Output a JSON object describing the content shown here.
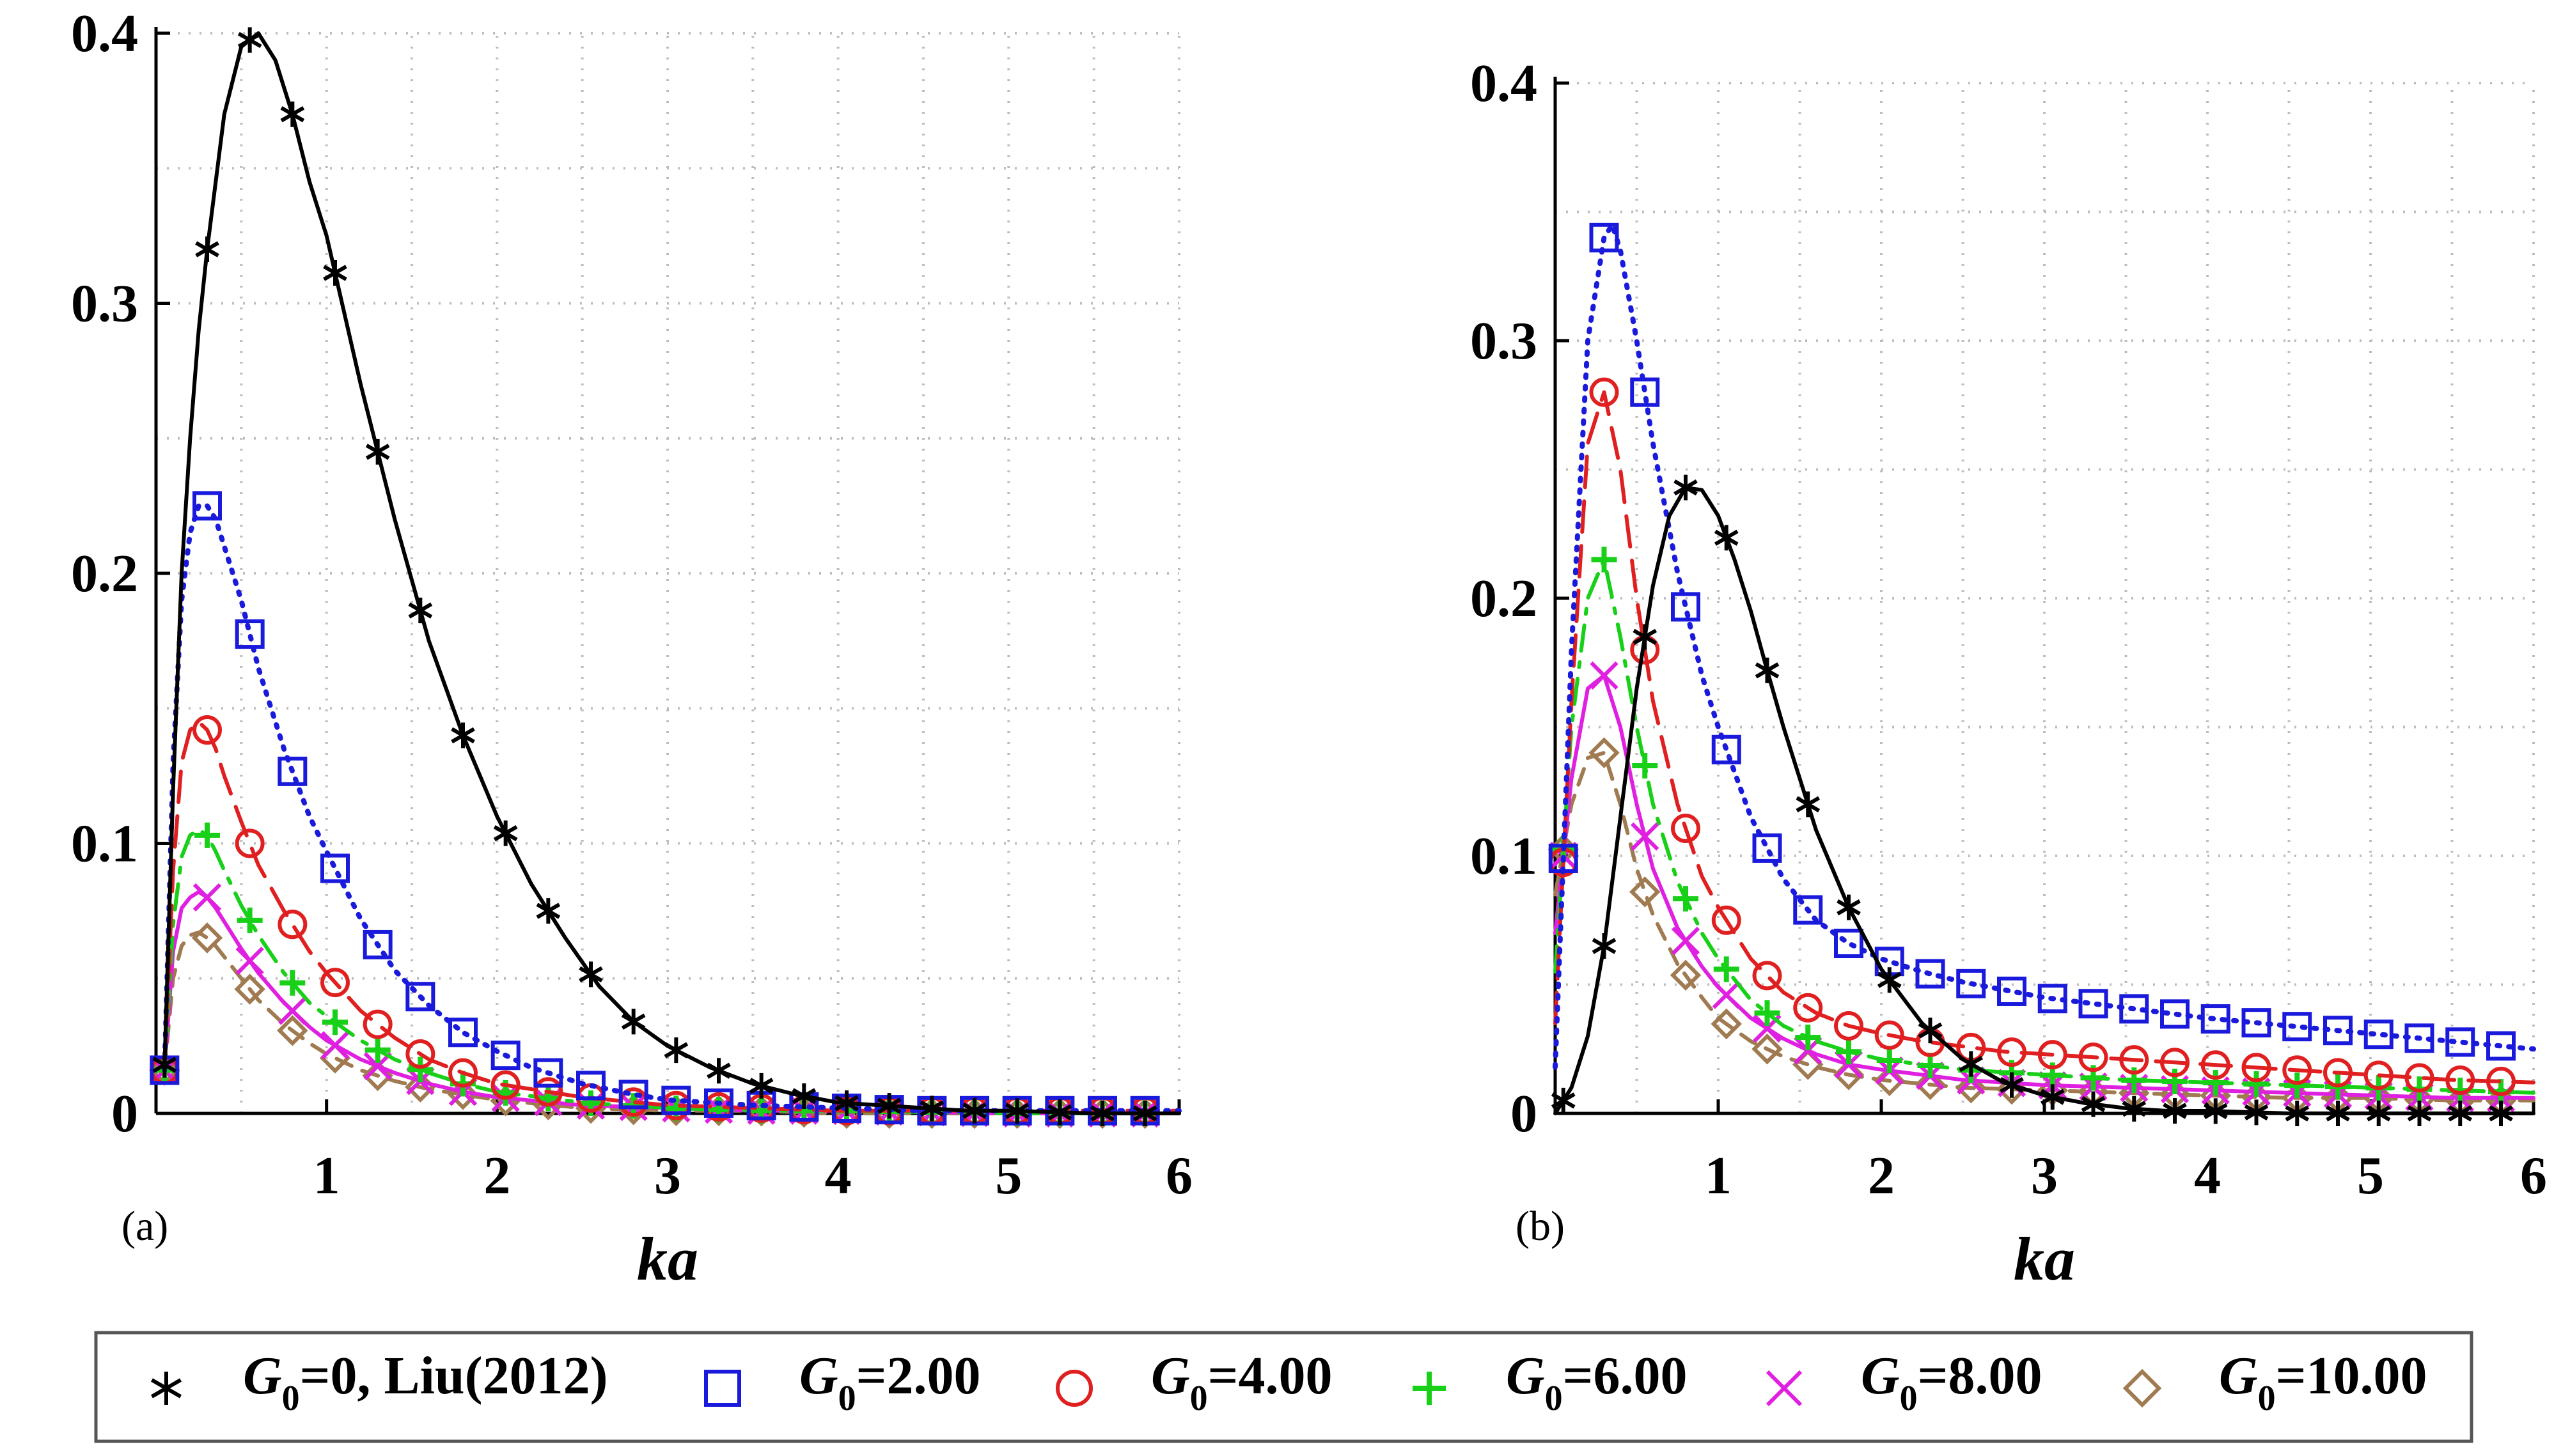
{
  "chart_data": [
    {
      "type": "line",
      "panel_label": "(a)",
      "xlabel": "ka",
      "ylabel": "",
      "xlim": [
        0,
        6
      ],
      "ylim": [
        0,
        0.4
      ],
      "xticks": [
        1,
        2,
        3,
        4,
        5,
        6
      ],
      "yticks": [
        0,
        0.1,
        0.2,
        0.3,
        0.4
      ],
      "xtick_labels": [
        "1",
        "2",
        "3",
        "4",
        "5",
        "6"
      ],
      "ytick_labels": [
        "0",
        "0.1",
        "0.2",
        "0.3",
        "0.4"
      ],
      "grid": true,
      "series": [
        {
          "name": "G0=0, Liu(2012)",
          "color": "#000000",
          "style": "solid",
          "marker": "star",
          "x": [
            0.05,
            0.1,
            0.15,
            0.2,
            0.25,
            0.3,
            0.4,
            0.5,
            0.6,
            0.7,
            0.8,
            0.9,
            1.0,
            1.2,
            1.4,
            1.6,
            1.8,
            2.0,
            2.2,
            2.4,
            2.6,
            2.8,
            3.0,
            3.25,
            3.5,
            3.75,
            4.0,
            4.25,
            4.5,
            4.75,
            5.0,
            5.5,
            6.0
          ],
          "values": [
            0.018,
            0.12,
            0.2,
            0.25,
            0.29,
            0.32,
            0.37,
            0.395,
            0.4,
            0.39,
            0.37,
            0.345,
            0.325,
            0.27,
            0.22,
            0.175,
            0.14,
            0.11,
            0.085,
            0.065,
            0.047,
            0.034,
            0.025,
            0.017,
            0.011,
            0.007,
            0.004,
            0.003,
            0.002,
            0.001,
            0.001,
            0.0,
            0.0
          ]
        },
        {
          "name": "G0=2.00",
          "color": "#1a1adc",
          "style": "dotted",
          "marker": "square",
          "x": [
            0.05,
            0.1,
            0.15,
            0.2,
            0.25,
            0.3,
            0.35,
            0.4,
            0.5,
            0.6,
            0.75,
            0.9,
            1.0,
            1.2,
            1.4,
            1.6,
            1.8,
            2.0,
            2.2,
            2.5,
            2.8,
            3.0,
            3.5,
            4.0,
            4.5,
            5.0,
            5.5,
            6.0
          ],
          "values": [
            0.016,
            0.13,
            0.19,
            0.215,
            0.225,
            0.225,
            0.22,
            0.21,
            0.19,
            0.165,
            0.135,
            0.11,
            0.097,
            0.072,
            0.053,
            0.04,
            0.03,
            0.023,
            0.017,
            0.011,
            0.007,
            0.005,
            0.003,
            0.002,
            0.001,
            0.001,
            0.001,
            0.001
          ]
        },
        {
          "name": "G0=4.00",
          "color": "#e02020",
          "style": "dashed",
          "marker": "circle",
          "x": [
            0.05,
            0.1,
            0.15,
            0.2,
            0.25,
            0.3,
            0.35,
            0.4,
            0.5,
            0.6,
            0.75,
            0.9,
            1.0,
            1.2,
            1.4,
            1.6,
            1.8,
            2.0,
            2.5,
            3.0,
            3.5,
            4.0,
            5.0,
            6.0
          ],
          "values": [
            0.016,
            0.09,
            0.13,
            0.142,
            0.145,
            0.142,
            0.135,
            0.125,
            0.108,
            0.092,
            0.075,
            0.06,
            0.052,
            0.038,
            0.028,
            0.02,
            0.015,
            0.011,
            0.006,
            0.003,
            0.002,
            0.001,
            0.001,
            0.001
          ]
        },
        {
          "name": "G0=6.00",
          "color": "#18d018",
          "style": "dashdot",
          "marker": "plus",
          "x": [
            0.05,
            0.1,
            0.15,
            0.2,
            0.25,
            0.3,
            0.35,
            0.4,
            0.5,
            0.6,
            0.75,
            0.9,
            1.0,
            1.2,
            1.4,
            1.6,
            1.8,
            2.0,
            2.5,
            3.0,
            3.5,
            4.0,
            5.0,
            6.0
          ],
          "values": [
            0.016,
            0.07,
            0.095,
            0.103,
            0.105,
            0.103,
            0.097,
            0.09,
            0.077,
            0.066,
            0.052,
            0.041,
            0.036,
            0.027,
            0.02,
            0.015,
            0.011,
            0.008,
            0.004,
            0.002,
            0.001,
            0.001,
            0.0,
            0.0
          ]
        },
        {
          "name": "G0=8.00",
          "color": "#e020e0",
          "style": "solid",
          "marker": "x",
          "x": [
            0.05,
            0.1,
            0.15,
            0.2,
            0.25,
            0.3,
            0.35,
            0.4,
            0.5,
            0.6,
            0.75,
            0.9,
            1.0,
            1.2,
            1.4,
            1.6,
            1.8,
            2.0,
            2.5,
            3.0,
            3.5,
            4.0,
            5.0,
            6.0
          ],
          "values": [
            0.016,
            0.06,
            0.076,
            0.08,
            0.082,
            0.08,
            0.076,
            0.071,
            0.061,
            0.052,
            0.041,
            0.032,
            0.027,
            0.02,
            0.015,
            0.011,
            0.008,
            0.006,
            0.003,
            0.002,
            0.001,
            0.001,
            0.0,
            0.0
          ]
        },
        {
          "name": "G0=10.00",
          "color": "#a07a50",
          "style": "dashed-short",
          "marker": "diamond",
          "x": [
            0.05,
            0.1,
            0.15,
            0.2,
            0.25,
            0.3,
            0.35,
            0.4,
            0.5,
            0.6,
            0.75,
            0.9,
            1.0,
            1.2,
            1.4,
            1.6,
            1.8,
            2.0,
            2.5,
            3.0,
            3.5,
            4.0,
            5.0,
            6.0
          ],
          "values": [
            0.016,
            0.05,
            0.062,
            0.066,
            0.067,
            0.065,
            0.062,
            0.058,
            0.05,
            0.042,
            0.033,
            0.026,
            0.022,
            0.016,
            0.012,
            0.009,
            0.007,
            0.005,
            0.002,
            0.001,
            0.001,
            0.0,
            0.0,
            0.0
          ]
        }
      ]
    },
    {
      "type": "line",
      "panel_label": "(b)",
      "xlabel": "ka",
      "ylabel": "",
      "xlim": [
        0,
        6
      ],
      "ylim": [
        0,
        0.4
      ],
      "xticks": [
        1,
        2,
        3,
        4,
        5,
        6
      ],
      "yticks": [
        0,
        0.1,
        0.2,
        0.3,
        0.4
      ],
      "xtick_labels": [
        "1",
        "2",
        "3",
        "4",
        "5",
        "6"
      ],
      "ytick_labels": [
        "0",
        "0.1",
        "0.2",
        "0.3",
        "0.4"
      ],
      "grid": true,
      "series": [
        {
          "name": "G0=0, Liu(2012)",
          "color": "#000000",
          "style": "solid",
          "marker": "star",
          "x": [
            0.0,
            0.1,
            0.2,
            0.3,
            0.4,
            0.5,
            0.6,
            0.7,
            0.8,
            0.9,
            1.0,
            1.1,
            1.2,
            1.3,
            1.4,
            1.5,
            1.6,
            1.8,
            2.0,
            2.25,
            2.5,
            2.75,
            3.0,
            3.25,
            3.5,
            3.75,
            4.0,
            4.5,
            5.0,
            5.5,
            6.0
          ],
          "values": [
            0.0,
            0.01,
            0.03,
            0.065,
            0.115,
            0.165,
            0.205,
            0.232,
            0.243,
            0.242,
            0.232,
            0.215,
            0.195,
            0.172,
            0.15,
            0.13,
            0.11,
            0.08,
            0.056,
            0.035,
            0.021,
            0.012,
            0.007,
            0.004,
            0.002,
            0.001,
            0.001,
            0.0,
            0.0,
            0.0,
            0.0
          ]
        },
        {
          "name": "G0=2.00",
          "color": "#1a1adc",
          "style": "dotted",
          "marker": "square",
          "x": [
            0.0,
            0.1,
            0.2,
            0.3,
            0.35,
            0.4,
            0.5,
            0.6,
            0.75,
            0.9,
            1.0,
            1.2,
            1.4,
            1.6,
            1.8,
            2.0,
            2.25,
            2.5,
            2.75,
            3.0,
            3.5,
            4.0,
            4.5,
            5.0,
            5.5,
            6.0
          ],
          "values": [
            0.018,
            0.18,
            0.3,
            0.34,
            0.345,
            0.335,
            0.3,
            0.26,
            0.21,
            0.17,
            0.15,
            0.115,
            0.091,
            0.075,
            0.066,
            0.06,
            0.055,
            0.051,
            0.048,
            0.045,
            0.041,
            0.037,
            0.034,
            0.031,
            0.028,
            0.025
          ]
        },
        {
          "name": "G0=4.00",
          "color": "#e02020",
          "style": "dashed",
          "marker": "circle",
          "x": [
            0.0,
            0.1,
            0.2,
            0.3,
            0.4,
            0.5,
            0.6,
            0.75,
            0.9,
            1.0,
            1.2,
            1.4,
            1.6,
            1.8,
            2.0,
            2.25,
            2.5,
            2.75,
            3.0,
            3.5,
            4.0,
            4.5,
            5.0,
            5.5,
            6.0
          ],
          "values": [
            0.035,
            0.16,
            0.26,
            0.28,
            0.25,
            0.2,
            0.16,
            0.12,
            0.092,
            0.08,
            0.06,
            0.047,
            0.039,
            0.034,
            0.031,
            0.028,
            0.026,
            0.024,
            0.023,
            0.021,
            0.019,
            0.017,
            0.015,
            0.013,
            0.012
          ]
        },
        {
          "name": "G0=6.00",
          "color": "#18d018",
          "style": "dashdot",
          "marker": "plus",
          "x": [
            0.0,
            0.1,
            0.2,
            0.3,
            0.4,
            0.5,
            0.6,
            0.75,
            0.9,
            1.0,
            1.2,
            1.4,
            1.6,
            1.8,
            2.0,
            2.5,
            3.0,
            3.5,
            4.0,
            4.5,
            5.0,
            5.5,
            6.0
          ],
          "values": [
            0.055,
            0.15,
            0.2,
            0.215,
            0.185,
            0.15,
            0.12,
            0.09,
            0.07,
            0.06,
            0.044,
            0.034,
            0.028,
            0.024,
            0.021,
            0.017,
            0.015,
            0.013,
            0.012,
            0.011,
            0.01,
            0.009,
            0.008
          ]
        },
        {
          "name": "G0=8.00",
          "color": "#e020e0",
          "style": "solid",
          "marker": "x",
          "x": [
            0.0,
            0.1,
            0.2,
            0.3,
            0.4,
            0.5,
            0.6,
            0.75,
            0.9,
            1.0,
            1.2,
            1.4,
            1.6,
            1.8,
            2.0,
            2.5,
            3.0,
            3.5,
            4.0,
            4.5,
            5.0,
            5.5,
            6.0
          ],
          "values": [
            0.07,
            0.13,
            0.165,
            0.17,
            0.15,
            0.12,
            0.095,
            0.072,
            0.057,
            0.049,
            0.037,
            0.029,
            0.023,
            0.019,
            0.017,
            0.013,
            0.011,
            0.01,
            0.009,
            0.008,
            0.007,
            0.006,
            0.006
          ]
        },
        {
          "name": "G0=10.00",
          "color": "#a07a50",
          "style": "dashed-short",
          "marker": "diamond",
          "x": [
            0.0,
            0.1,
            0.2,
            0.3,
            0.4,
            0.5,
            0.6,
            0.75,
            0.9,
            1.0,
            1.2,
            1.4,
            1.6,
            1.8,
            2.0,
            2.5,
            3.0,
            3.5,
            4.0,
            4.5,
            5.0,
            5.5,
            6.0
          ],
          "values": [
            0.085,
            0.12,
            0.138,
            0.14,
            0.12,
            0.095,
            0.077,
            0.058,
            0.045,
            0.037,
            0.028,
            0.022,
            0.018,
            0.015,
            0.013,
            0.01,
            0.009,
            0.008,
            0.007,
            0.006,
            0.006,
            0.005,
            0.005
          ]
        }
      ]
    }
  ],
  "legend": {
    "items": [
      {
        "marker": "star",
        "color": "#000000",
        "label_main": "G",
        "label_sub": "0",
        "label_rest": "=0, Liu(2012)"
      },
      {
        "marker": "square",
        "color": "#1a1adc",
        "label_main": "G",
        "label_sub": "0",
        "label_rest": "=2.00"
      },
      {
        "marker": "circle",
        "color": "#e02020",
        "label_main": "G",
        "label_sub": "0",
        "label_rest": "=4.00"
      },
      {
        "marker": "plus",
        "color": "#18d018",
        "label_main": "G",
        "label_sub": "0",
        "label_rest": "=6.00"
      },
      {
        "marker": "x",
        "color": "#e020e0",
        "label_main": "G",
        "label_sub": "0",
        "label_rest": "=8.00"
      },
      {
        "marker": "diamond",
        "color": "#a07a50",
        "label_main": "G",
        "label_sub": "0",
        "label_rest": "=10.00"
      }
    ]
  }
}
